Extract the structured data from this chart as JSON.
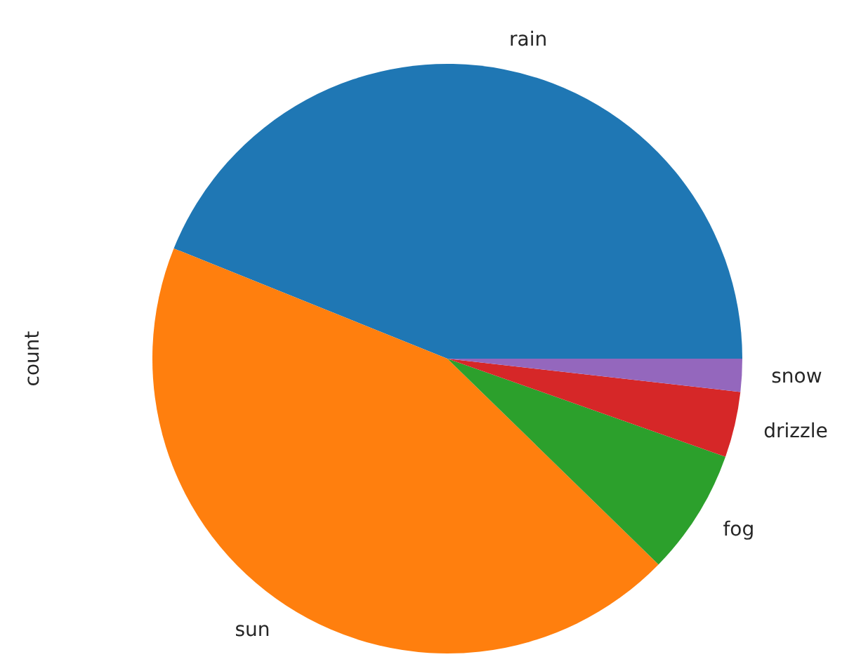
{
  "chart_data": {
    "type": "pie",
    "ylabel": "count",
    "categories": [
      "rain",
      "sun",
      "fog",
      "drizzle",
      "snow"
    ],
    "values": [
      43.9,
      43.8,
      6.9,
      3.6,
      1.8
    ],
    "colors": [
      "#1f77b4",
      "#ff7f0e",
      "#2ca02c",
      "#d62728",
      "#9467bd"
    ]
  }
}
